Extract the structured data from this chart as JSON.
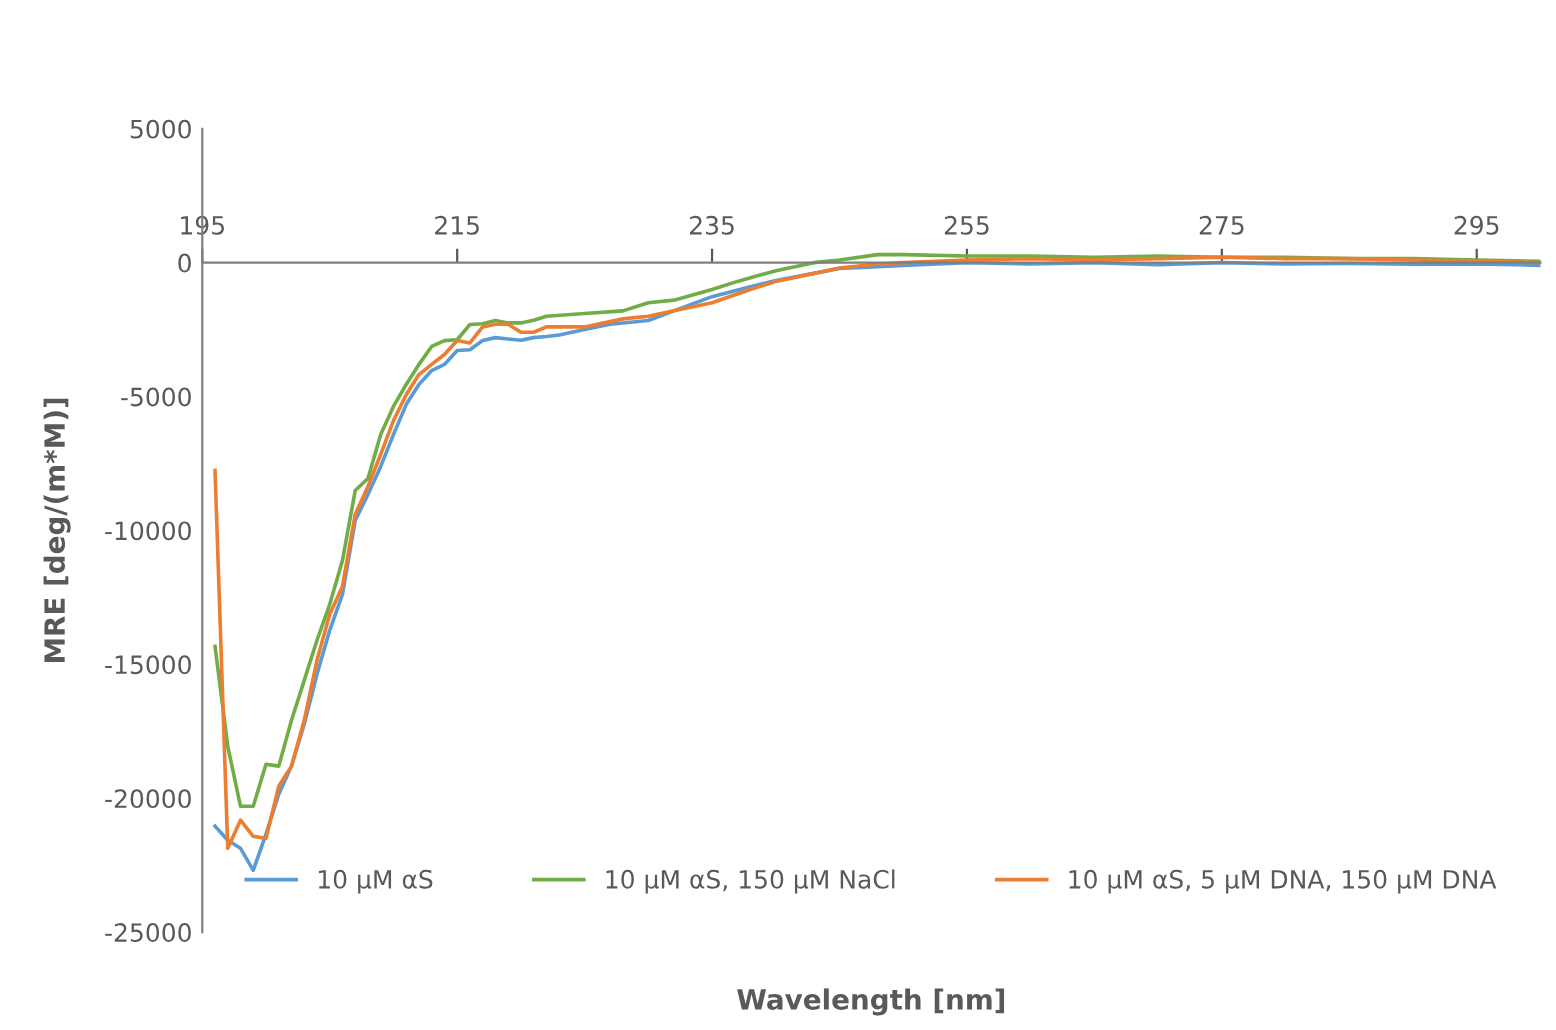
{
  "chart_data": {
    "type": "line",
    "xlabel": "Wavelength [nm]",
    "ylabel": "MRE [deg/(m*M)]",
    "xlim": [
      195,
      300
    ],
    "xticks": [
      195,
      215,
      235,
      255,
      275,
      295
    ],
    "ylim": [
      -25000,
      5000
    ],
    "yticks": [
      -25000,
      -20000,
      -15000,
      -10000,
      -5000,
      0,
      5000
    ],
    "grid": false,
    "legend": "bottom",
    "marker": "none",
    "line_style": "solid",
    "series": [
      {
        "name": "10 µM αS",
        "color": "#5b9bd5",
        "x": [
          196,
          197,
          198,
          199,
          200,
          201,
          202,
          203,
          204,
          205,
          206,
          207,
          208,
          209,
          210,
          211,
          212,
          213,
          214,
          215,
          216,
          217,
          218,
          219,
          220,
          221,
          222,
          223,
          225,
          227,
          230,
          232,
          235,
          238,
          240,
          243,
          245,
          248,
          250,
          255,
          260,
          265,
          270,
          275,
          280,
          285,
          290,
          295,
          300
        ],
        "values": [
          -21040,
          -21570,
          -21870,
          -22690,
          -21340,
          -19850,
          -18800,
          -17240,
          -15370,
          -13730,
          -12390,
          -9630,
          -8660,
          -7610,
          -6420,
          -5300,
          -4550,
          -4030,
          -3800,
          -3280,
          -3250,
          -2910,
          -2800,
          -2850,
          -2900,
          -2800,
          -2760,
          -2700,
          -2500,
          -2300,
          -2160,
          -1800,
          -1270,
          -900,
          -670,
          -400,
          -220,
          -150,
          -100,
          0,
          -50,
          0,
          -80,
          0,
          -50,
          -30,
          -60,
          -50,
          -100
        ]
      },
      {
        "name": "10 µM αS, 150 µM NaCl",
        "color": "#70ad47",
        "x": [
          196,
          197,
          198,
          199,
          200,
          201,
          202,
          203,
          204,
          205,
          206,
          207,
          208,
          209,
          210,
          211,
          212,
          213,
          214,
          215,
          216,
          217,
          218,
          219,
          220,
          221,
          222,
          225,
          228,
          230,
          232,
          235,
          237,
          240,
          243,
          245,
          248,
          250,
          255,
          260,
          265,
          270,
          275,
          280,
          285,
          290,
          295,
          300
        ],
        "values": [
          -14330,
          -18060,
          -20300,
          -20300,
          -18730,
          -18800,
          -17090,
          -15600,
          -14100,
          -12760,
          -11120,
          -8510,
          -8060,
          -6420,
          -5370,
          -4550,
          -3800,
          -3130,
          -2910,
          -2880,
          -2310,
          -2280,
          -2160,
          -2250,
          -2250,
          -2150,
          -2000,
          -1900,
          -1800,
          -1500,
          -1400,
          -1000,
          -700,
          -300,
          0,
          100,
          300,
          300,
          250,
          250,
          200,
          250,
          200,
          200,
          150,
          150,
          100,
          50
        ]
      },
      {
        "name": "10 µM αS, 5 µM DNA, 150 µM DNA",
        "color": "#ed7d31",
        "x": [
          196,
          197,
          198,
          199,
          200,
          201,
          202,
          203,
          204,
          205,
          206,
          207,
          208,
          209,
          210,
          211,
          212,
          213,
          214,
          215,
          216,
          217,
          218,
          219,
          220,
          221,
          222,
          225,
          228,
          230,
          232,
          235,
          238,
          240,
          243,
          245,
          248,
          250,
          255,
          260,
          265,
          270,
          275,
          280,
          285,
          290,
          295,
          300
        ],
        "values": [
          -7760,
          -21870,
          -20820,
          -21420,
          -21500,
          -19550,
          -18800,
          -17090,
          -14850,
          -13130,
          -12090,
          -9400,
          -8360,
          -7160,
          -5900,
          -4930,
          -4180,
          -3800,
          -3430,
          -2910,
          -3000,
          -2400,
          -2300,
          -2300,
          -2600,
          -2600,
          -2400,
          -2400,
          -2100,
          -2000,
          -1800,
          -1500,
          -1000,
          -700,
          -400,
          -200,
          -50,
          0,
          100,
          150,
          100,
          150,
          200,
          150,
          150,
          100,
          50,
          0
        ]
      }
    ]
  }
}
